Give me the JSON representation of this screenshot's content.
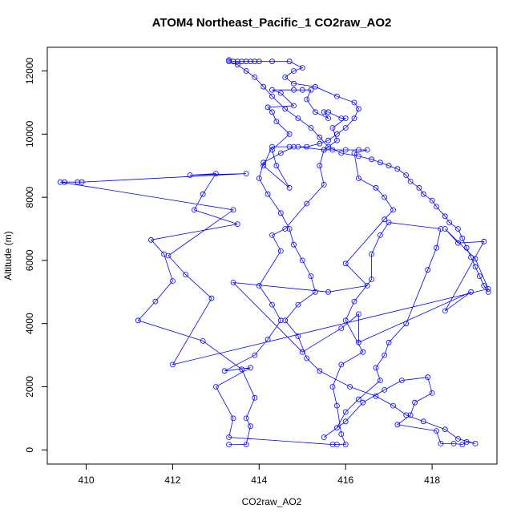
{
  "chart_data": {
    "type": "scatter",
    "title": "ATOM4 Northeast_Pacific_1 CO2raw_AO2",
    "xlabel": "CO2raw_AO2",
    "ylabel": "Altitude (m)",
    "xlim": [
      409.1,
      419.5
    ],
    "ylim": [
      -450,
      12750
    ],
    "xticks": [
      410,
      412,
      414,
      416,
      418
    ],
    "yticks": [
      0,
      2000,
      4000,
      6000,
      8000,
      10000,
      12000
    ],
    "grid": false,
    "series_color": "#0000ff",
    "marker": "open-circle",
    "connected": true,
    "points": [
      [
        413.3,
        170
      ],
      [
        413.7,
        170
      ],
      [
        413.8,
        750
      ],
      [
        413.7,
        1000
      ],
      [
        413.9,
        1650
      ],
      [
        413.6,
        2550
      ],
      [
        412.7,
        3450
      ],
      [
        411.2,
        4100
      ],
      [
        411.6,
        4700
      ],
      [
        412.0,
        5350
      ],
      [
        411.8,
        6200
      ],
      [
        411.5,
        6650
      ],
      [
        413.5,
        7150
      ],
      [
        412.5,
        7600
      ],
      [
        412.7,
        8100
      ],
      [
        413.0,
        8750
      ],
      [
        412.4,
        8700
      ],
      [
        413.7,
        8750
      ],
      [
        409.9,
        8480
      ],
      [
        409.8,
        8480
      ],
      [
        409.5,
        8480
      ],
      [
        409.4,
        8480
      ],
      [
        413.4,
        7600
      ],
      [
        411.9,
        6150
      ],
      [
        412.3,
        5550
      ],
      [
        412.9,
        4800
      ],
      [
        412.0,
        2700
      ],
      [
        419.3,
        5100
      ],
      [
        419.0,
        6050
      ],
      [
        418.3,
        7000
      ],
      [
        418.6,
        6550
      ],
      [
        419.2,
        6600
      ],
      [
        418.3,
        4400
      ],
      [
        418.9,
        5000
      ],
      [
        416.3,
        3400
      ],
      [
        416.3,
        4300
      ],
      [
        415.9,
        3850
      ],
      [
        415.0,
        3100
      ],
      [
        413.4,
        5300
      ],
      [
        415.6,
        5000
      ],
      [
        416.5,
        5200
      ],
      [
        416.0,
        5900
      ],
      [
        416.9,
        7300
      ],
      [
        417.1,
        7600
      ],
      [
        416.9,
        8000
      ],
      [
        416.7,
        8300
      ],
      [
        416.3,
        8600
      ],
      [
        416.2,
        9400
      ],
      [
        416.5,
        9500
      ],
      [
        416.3,
        9500
      ],
      [
        416.0,
        9500
      ],
      [
        415.7,
        9500
      ],
      [
        415.5,
        9500
      ],
      [
        414.9,
        9600
      ],
      [
        414.7,
        9600
      ],
      [
        414.3,
        9600
      ],
      [
        414.1,
        9000
      ],
      [
        414.7,
        8300
      ],
      [
        414.4,
        9000
      ],
      [
        414.3,
        9500
      ],
      [
        414.7,
        10000
      ],
      [
        414.4,
        10400
      ],
      [
        414.3,
        10700
      ],
      [
        414.2,
        10850
      ],
      [
        414.8,
        10900
      ],
      [
        414.5,
        11300
      ],
      [
        414.3,
        11400
      ],
      [
        414.8,
        11400
      ],
      [
        415.0,
        11400
      ],
      [
        415.2,
        11400
      ],
      [
        415.1,
        11100
      ],
      [
        415.3,
        10700
      ],
      [
        415.6,
        10500
      ],
      [
        415.5,
        10700
      ],
      [
        415.6,
        10700
      ],
      [
        415.9,
        10500
      ],
      [
        416.0,
        10500
      ],
      [
        415.7,
        10200
      ],
      [
        415.8,
        9800
      ],
      [
        415.5,
        9500
      ],
      [
        415.4,
        9000
      ],
      [
        415.5,
        8400
      ],
      [
        415.1,
        7800
      ],
      [
        414.6,
        7000
      ],
      [
        414.3,
        6800
      ],
      [
        414.5,
        6300
      ],
      [
        414.0,
        5200
      ],
      [
        414.3,
        4600
      ],
      [
        414.5,
        4100
      ],
      [
        414.2,
        3500
      ],
      [
        413.9,
        3000
      ],
      [
        413.2,
        2500
      ],
      [
        413.8,
        2600
      ],
      [
        413.0,
        2000
      ],
      [
        413.4,
        1000
      ],
      [
        413.3,
        400
      ],
      [
        415.7,
        170
      ],
      [
        415.8,
        170
      ],
      [
        416.0,
        170
      ],
      [
        415.9,
        500
      ],
      [
        415.8,
        1400
      ],
      [
        415.7,
        2000
      ],
      [
        415.9,
        2700
      ],
      [
        416.4,
        3100
      ],
      [
        416.0,
        4100
      ],
      [
        416.2,
        4700
      ],
      [
        416.6,
        5400
      ],
      [
        416.6,
        6200
      ],
      [
        416.8,
        6800
      ],
      [
        417.0,
        7200
      ],
      [
        418.2,
        7000
      ],
      [
        418.1,
        6400
      ],
      [
        417.9,
        5700
      ],
      [
        417.4,
        4000
      ],
      [
        417.0,
        3400
      ],
      [
        416.9,
        3000
      ],
      [
        416.7,
        2600
      ],
      [
        416.8,
        2200
      ],
      [
        416.3,
        1600
      ],
      [
        416.0,
        1200
      ],
      [
        415.8,
        700
      ],
      [
        415.5,
        400
      ],
      [
        416.0,
        900
      ],
      [
        416.4,
        1500
      ],
      [
        416.9,
        1900
      ],
      [
        417.3,
        2200
      ],
      [
        417.9,
        2300
      ],
      [
        418.0,
        1800
      ],
      [
        417.6,
        1500
      ],
      [
        417.5,
        1100
      ],
      [
        417.2,
        800
      ],
      [
        418.1,
        600
      ],
      [
        418.2,
        200
      ],
      [
        418.5,
        200
      ],
      [
        418.7,
        170
      ],
      [
        418.8,
        250
      ],
      [
        419.0,
        200
      ],
      [
        418.6,
        350
      ],
      [
        418.3,
        650
      ],
      [
        417.8,
        900
      ],
      [
        417.4,
        1100
      ],
      [
        417.1,
        1400
      ],
      [
        416.7,
        1700
      ],
      [
        416.1,
        2000
      ],
      [
        415.4,
        2500
      ],
      [
        415.1,
        2900
      ],
      [
        414.9,
        3600
      ],
      [
        414.6,
        4100
      ],
      [
        414.9,
        4600
      ],
      [
        415.3,
        5000
      ],
      [
        415.2,
        5500
      ],
      [
        415.0,
        6000
      ],
      [
        414.8,
        6500
      ],
      [
        414.7,
        7000
      ],
      [
        414.5,
        7500
      ],
      [
        414.2,
        8100
      ],
      [
        414.0,
        8600
      ],
      [
        414.1,
        9100
      ],
      [
        414.5,
        9400
      ],
      [
        414.8,
        9600
      ],
      [
        415.1,
        9600
      ],
      [
        415.4,
        9700
      ],
      [
        415.6,
        9800
      ],
      [
        415.8,
        10000
      ],
      [
        416.0,
        10200
      ],
      [
        416.2,
        10500
      ],
      [
        416.3,
        10800
      ],
      [
        416.2,
        11000
      ],
      [
        415.8,
        11200
      ],
      [
        415.3,
        11500
      ],
      [
        414.8,
        11600
      ],
      [
        414.6,
        11800
      ],
      [
        414.8,
        12000
      ],
      [
        415.0,
        12100
      ],
      [
        414.7,
        12300
      ],
      [
        414.3,
        12300
      ],
      [
        414.0,
        12300
      ],
      [
        413.9,
        12300
      ],
      [
        413.8,
        12300
      ],
      [
        413.7,
        12300
      ],
      [
        413.6,
        12300
      ],
      [
        413.5,
        12300
      ],
      [
        413.4,
        12300
      ],
      [
        413.3,
        12350
      ],
      [
        413.3,
        12300
      ],
      [
        413.5,
        12200
      ],
      [
        413.7,
        12000
      ],
      [
        413.9,
        11800
      ],
      [
        414.1,
        11500
      ],
      [
        414.3,
        11200
      ],
      [
        414.6,
        10800
      ],
      [
        414.9,
        10500
      ],
      [
        415.2,
        10200
      ],
      [
        415.4,
        9900
      ],
      [
        415.6,
        9600
      ],
      [
        415.9,
        9400
      ],
      [
        416.3,
        9300
      ],
      [
        416.6,
        9200
      ],
      [
        416.8,
        9100
      ],
      [
        417.0,
        9000
      ],
      [
        417.2,
        8900
      ],
      [
        417.4,
        8700
      ],
      [
        417.5,
        8500
      ],
      [
        417.7,
        8300
      ],
      [
        417.8,
        8100
      ],
      [
        418.0,
        7900
      ],
      [
        418.1,
        7700
      ],
      [
        418.3,
        7400
      ],
      [
        418.4,
        7200
      ],
      [
        418.6,
        7000
      ],
      [
        418.7,
        6700
      ],
      [
        418.8,
        6400
      ],
      [
        418.9,
        6100
      ],
      [
        419.0,
        5800
      ],
      [
        419.1,
        5500
      ],
      [
        419.2,
        5200
      ],
      [
        419.3,
        5000
      ]
    ]
  }
}
